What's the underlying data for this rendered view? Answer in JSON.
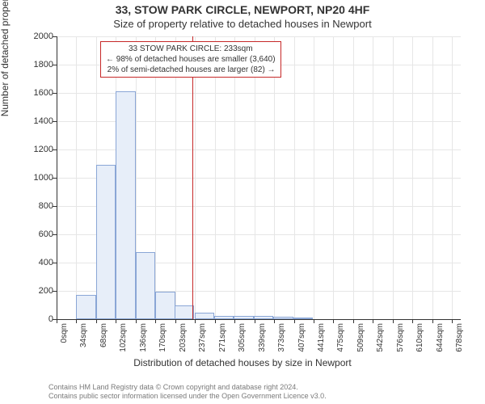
{
  "title": "33, STOW PARK CIRCLE, NEWPORT, NP20 4HF",
  "subtitle": "Size of property relative to detached houses in Newport",
  "y_axis_label": "Number of detached properties",
  "x_axis_label": "Distribution of detached houses by size in Newport",
  "chart": {
    "type": "histogram",
    "background_color": "#ffffff",
    "grid_color": "#e6e6e6",
    "axis_color": "#333333",
    "bar_fill": "#e7eef9",
    "bar_border": "#8aa6d6",
    "ref_line_color": "#c62828",
    "annotation_border": "#c62828",
    "xlim_sqm": [
      0,
      695
    ],
    "ylim": [
      0,
      2000
    ],
    "x_tick_step_sqm": 34,
    "y_tick_step": 200,
    "y_ticks": [
      0,
      200,
      400,
      600,
      800,
      1000,
      1200,
      1400,
      1600,
      1800,
      2000
    ],
    "x_ticks_labels": [
      "0sqm",
      "34sqm",
      "68sqm",
      "102sqm",
      "136sqm",
      "170sqm",
      "203sqm",
      "237sqm",
      "271sqm",
      "305sqm",
      "339sqm",
      "373sqm",
      "407sqm",
      "441sqm",
      "475sqm",
      "509sqm",
      "542sqm",
      "576sqm",
      "610sqm",
      "644sqm",
      "678sqm"
    ],
    "bars_sqm_bin_left": [
      0,
      34,
      68,
      102,
      136,
      170,
      203,
      237,
      271,
      305,
      339,
      373,
      407
    ],
    "bar_values": [
      0,
      170,
      1090,
      1610,
      475,
      195,
      100,
      45,
      25,
      25,
      22,
      18,
      10
    ],
    "reference_value_sqm": 233,
    "title_fontsize": 14,
    "subtitle_fontsize": 13,
    "label_fontsize": 12,
    "tick_fontsize": 11
  },
  "annotation": {
    "line1": "33 STOW PARK CIRCLE: 233sqm",
    "line2": "← 98% of detached houses are smaller (3,640)",
    "line3": "2% of semi-detached houses are larger (82) →"
  },
  "footer": {
    "line1": "Contains HM Land Registry data © Crown copyright and database right 2024.",
    "line2": "Contains public sector information licensed under the Open Government Licence v3.0."
  }
}
